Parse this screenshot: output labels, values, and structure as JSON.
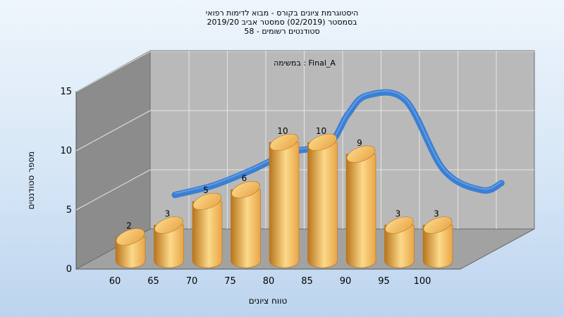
{
  "chart_data": {
    "type": "bar",
    "title_lines": [
      "היסטוגרמת ציונים בקורס - מבוא לדימות רפואי",
      "בסמסטר  (02/2019)  סמסטר אביב 2019/20",
      "סטודנטים רשומים - 58"
    ],
    "annotation": "במשימה : Final_A",
    "xlabel": "טווח ציונים",
    "ylabel": "מספר סטודנטים",
    "categories": [
      "60",
      "65",
      "70",
      "75",
      "80",
      "85",
      "90",
      "95",
      "100"
    ],
    "values": [
      2,
      3,
      5,
      6,
      10,
      10,
      9,
      3,
      3
    ],
    "ylim": [
      0,
      15
    ],
    "yticks": [
      "0",
      "5",
      "10",
      "15"
    ],
    "curve": [
      {
        "x": 62.5,
        "y": 4.4
      },
      {
        "x": 67.5,
        "y": 5.2
      },
      {
        "x": 72.5,
        "y": 6.5
      },
      {
        "x": 77.5,
        "y": 8.0
      },
      {
        "x": 82.5,
        "y": 8.7
      },
      {
        "x": 85,
        "y": 11.2
      },
      {
        "x": 87.5,
        "y": 12.8
      },
      {
        "x": 92.5,
        "y": 12.4
      },
      {
        "x": 97.5,
        "y": 6.5
      },
      {
        "x": 102.5,
        "y": 4.8
      },
      {
        "x": 105,
        "y": 5.4
      }
    ],
    "grid": true,
    "colors": {
      "bar": "#e8a547",
      "bar_highlight": "#fcd98a",
      "bar_shadow": "#b8741c",
      "curve": "#3b7fd2",
      "back_wall": "#b9b9b9",
      "side_wall": "#8c8c8c",
      "floor": "#a2a2a2"
    }
  }
}
